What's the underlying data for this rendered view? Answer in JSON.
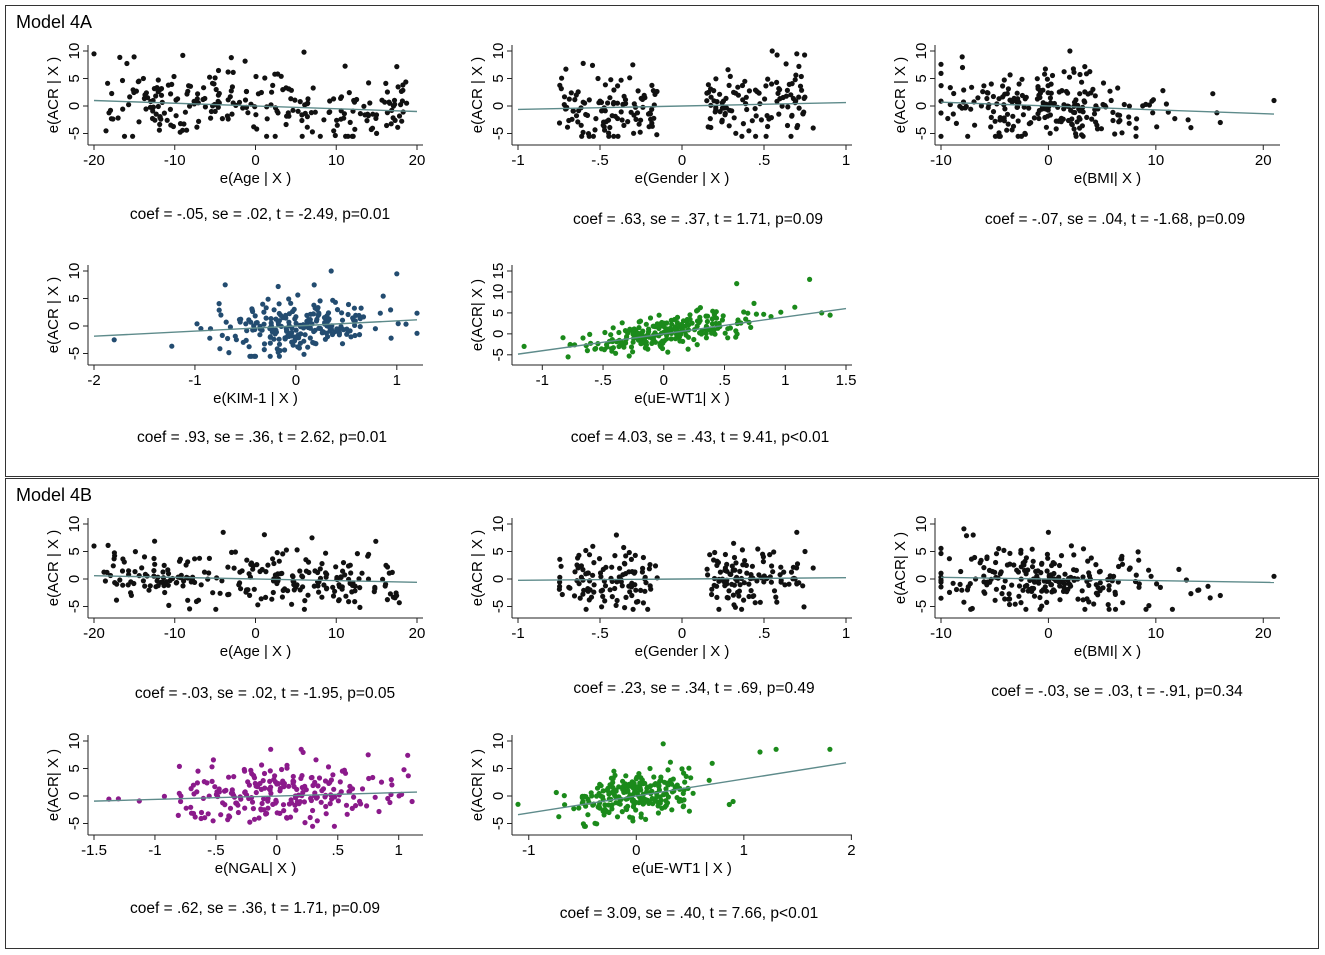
{
  "panels": [
    {
      "title": "Model 4A"
    },
    {
      "title": "Model 4B"
    }
  ],
  "colors": {
    "black": "#111111",
    "blue": "#234c70",
    "green": "#1b8a1b",
    "purple": "#8b1a8b",
    "fit_line": "#5e8b8b",
    "axis": "#222222"
  },
  "chart_data": [
    {
      "id": "a1",
      "type": "scatter",
      "panel": "Model 4A",
      "xlabel": "e(Age | X )",
      "ylabel": "e(ACR | X )",
      "xticks": [
        "-20",
        "-10",
        "0",
        "10",
        "20"
      ],
      "xtick_values": [
        -20,
        -10,
        0,
        10,
        20
      ],
      "yticks": [
        "-5",
        "0",
        "5",
        "10"
      ],
      "ytick_values": [
        -5,
        0,
        5,
        10
      ],
      "xlim": [
        -20,
        20
      ],
      "ylim": [
        -6,
        10
      ],
      "color": "black",
      "n_points": 240,
      "x_spread": 19,
      "y_spread": 3,
      "outliers": [
        [
          -20,
          9.5
        ],
        [
          -9,
          9.2
        ],
        [
          6,
          9.8
        ],
        [
          -3,
          8.8
        ],
        [
          14,
          4.2
        ]
      ],
      "fit": {
        "slope": -0.05,
        "intercept": 0
      },
      "annotation": "coef = -.05, se = .02, t = -2.49, p=0.01"
    },
    {
      "id": "a2",
      "type": "scatter",
      "panel": "Model 4A",
      "xlabel": "e(Gender | X )",
      "ylabel": "e(ACR | X )",
      "xticks": [
        "-1",
        "-.5",
        "0",
        ".5",
        "1"
      ],
      "xtick_values": [
        -1,
        -0.5,
        0,
        0.5,
        1
      ],
      "yticks": [
        "-5",
        "0",
        "5",
        "10"
      ],
      "ytick_values": [
        -5,
        0,
        5,
        10
      ],
      "xlim": [
        -1,
        1
      ],
      "ylim": [
        -6,
        10
      ],
      "color": "black",
      "n_points": 220,
      "groups": [
        -0.45,
        0.45
      ],
      "y_spread": 3,
      "outliers": [
        [
          0.55,
          10
        ],
        [
          0.7,
          9.5
        ],
        [
          -0.3,
          7.5
        ],
        [
          0.8,
          -4
        ]
      ],
      "fit": {
        "slope": 0.63,
        "intercept": 0
      },
      "annotation": "coef = .63, se = .37, t = 1.71, p=0.09"
    },
    {
      "id": "a3",
      "type": "scatter",
      "panel": "Model 4A",
      "xlabel": "e(BMI| X )",
      "ylabel": "e(ACR | X )",
      "xticks": [
        "-10",
        "0",
        "10",
        "20"
      ],
      "xtick_values": [
        -10,
        0,
        10,
        20
      ],
      "yticks": [
        "-5",
        "0",
        "5",
        "10"
      ],
      "ytick_values": [
        -5,
        0,
        5,
        10
      ],
      "xlim": [
        -10,
        21
      ],
      "ylim": [
        -6,
        10
      ],
      "color": "black",
      "n_points": 230,
      "x_spread": 5,
      "y_spread": 3,
      "outliers": [
        [
          -8,
          7
        ],
        [
          2,
          10
        ],
        [
          13,
          -2.5
        ],
        [
          16,
          -3
        ],
        [
          21,
          1
        ]
      ],
      "fit": {
        "slope": -0.07,
        "intercept": 0
      },
      "annotation": "coef = -.07, se = .04, t = -1.68, p=0.09"
    },
    {
      "id": "a4",
      "type": "scatter",
      "panel": "Model 4A",
      "xlabel": "e(KIM-1 | X )",
      "ylabel": "e(ACR | X )",
      "xticks": [
        "-2",
        "-1",
        "0",
        "1"
      ],
      "xtick_values": [
        -2,
        -1,
        0,
        1
      ],
      "yticks": [
        "-5",
        "0",
        "5",
        "10"
      ],
      "ytick_values": [
        -5,
        0,
        5,
        10
      ],
      "xlim": [
        -2,
        1.2
      ],
      "ylim": [
        -6,
        10
      ],
      "color": "blue",
      "n_points": 230,
      "x_spread": 0.45,
      "y_spread": 2.5,
      "outliers": [
        [
          -1.8,
          -2.5
        ],
        [
          0.35,
          10
        ],
        [
          1,
          9.5
        ],
        [
          -0.7,
          7.5
        ]
      ],
      "fit": {
        "slope": 0.93,
        "intercept": 0
      },
      "annotation": "coef = .93, se = .36, t = 2.62, p=0.01"
    },
    {
      "id": "a5",
      "type": "scatter",
      "panel": "Model 4A",
      "xlabel": "e(uE-WT1| X )",
      "ylabel": "e(ACR| X )",
      "xticks": [
        "-1",
        "-.5",
        "0",
        ".5",
        "1",
        "1.5"
      ],
      "xtick_values": [
        -1,
        -0.5,
        0,
        0.5,
        1,
        1.5
      ],
      "yticks": [
        "-5",
        "0",
        "5",
        "10",
        "15"
      ],
      "ytick_values": [
        -5,
        0,
        5,
        10,
        15
      ],
      "xlim": [
        -1.2,
        1.5
      ],
      "ylim": [
        -6,
        15
      ],
      "color": "green",
      "n_points": 230,
      "x_spread": 0.35,
      "y_spread": 2,
      "outliers": [
        [
          1.2,
          13
        ],
        [
          0.6,
          12
        ],
        [
          1.3,
          5
        ],
        [
          -1.15,
          -3
        ]
      ],
      "fit": {
        "slope": 4.03,
        "intercept": 0
      },
      "annotation": "coef = 4.03, se = .43, t = 9.41, p<0.01"
    },
    {
      "id": "b1",
      "type": "scatter",
      "panel": "Model 4B",
      "xlabel": "e(Age | X )",
      "ylabel": "e(ACR | X )",
      "xticks": [
        "-20",
        "-10",
        "0",
        "10",
        "20"
      ],
      "xtick_values": [
        -20,
        -10,
        0,
        10,
        20
      ],
      "yticks": [
        "-5",
        "0",
        "5",
        "10"
      ],
      "ytick_values": [
        -5,
        0,
        5,
        10
      ],
      "xlim": [
        -20,
        20
      ],
      "ylim": [
        -6,
        10
      ],
      "color": "black",
      "n_points": 240,
      "x_spread": 19,
      "y_spread": 2.5,
      "outliers": [
        [
          -20,
          6
        ],
        [
          -4,
          8.5
        ],
        [
          7,
          7.5
        ],
        [
          14,
          4.5
        ]
      ],
      "fit": {
        "slope": -0.03,
        "intercept": 0
      },
      "annotation": "coef = -.03, se = .02, t = -1.95, p=0.05"
    },
    {
      "id": "b2",
      "type": "scatter",
      "panel": "Model 4B",
      "xlabel": "e(Gender | X )",
      "ylabel": "e(ACR | X )",
      "xticks": [
        "-1",
        "-.5",
        "0",
        ".5",
        "1"
      ],
      "xtick_values": [
        -1,
        -0.5,
        0,
        0.5,
        1
      ],
      "yticks": [
        "-5",
        "0",
        "5",
        "10"
      ],
      "ytick_values": [
        -5,
        0,
        5,
        10
      ],
      "xlim": [
        -1,
        1
      ],
      "ylim": [
        -6,
        10
      ],
      "color": "black",
      "n_points": 220,
      "groups": [
        -0.45,
        0.45
      ],
      "y_spread": 2.8,
      "outliers": [
        [
          0.7,
          8.5
        ],
        [
          -0.4,
          8
        ],
        [
          0.75,
          5
        ],
        [
          0.8,
          2
        ]
      ],
      "fit": {
        "slope": 0.23,
        "intercept": 0
      },
      "annotation": "coef = .23, se = .34, t = .69, p=0.49"
    },
    {
      "id": "b3",
      "type": "scatter",
      "panel": "Model 4B",
      "xlabel": "e(BMI| X )",
      "ylabel": "e(ACR| X )",
      "xticks": [
        "-10",
        "0",
        "10",
        "20"
      ],
      "xtick_values": [
        -10,
        0,
        10,
        20
      ],
      "yticks": [
        "-5",
        "0",
        "5",
        "10"
      ],
      "ytick_values": [
        -5,
        0,
        5,
        10
      ],
      "xlim": [
        -10,
        21
      ],
      "ylim": [
        -6,
        10
      ],
      "color": "black",
      "n_points": 230,
      "x_spread": 5,
      "y_spread": 2.8,
      "outliers": [
        [
          0,
          8.5
        ],
        [
          -7,
          8
        ],
        [
          14,
          -2
        ],
        [
          16,
          -3
        ],
        [
          21,
          0.5
        ]
      ],
      "fit": {
        "slope": -0.03,
        "intercept": 0
      },
      "annotation": "coef = -.03, se = .03, t = -.91, p=0.34"
    },
    {
      "id": "b4",
      "type": "scatter",
      "panel": "Model 4B",
      "xlabel": "e(NGAL| X )",
      "ylabel": "e(ACR| X )",
      "xticks": [
        "-1.5",
        "-1",
        "-.5",
        "0",
        ".5",
        "1"
      ],
      "xtick_values": [
        -1.5,
        -1,
        -0.5,
        0,
        0.5,
        1
      ],
      "yticks": [
        "-5",
        "0",
        "5",
        "10"
      ],
      "ytick_values": [
        -5,
        0,
        5,
        10
      ],
      "xlim": [
        -1.5,
        1.15
      ],
      "ylim": [
        -6,
        10
      ],
      "color": "purple",
      "n_points": 230,
      "x_spread": 0.45,
      "y_spread": 2.8,
      "outliers": [
        [
          -0.05,
          8.5
        ],
        [
          0.2,
          8.5
        ],
        [
          0.75,
          7.5
        ],
        [
          -1.3,
          -0.5
        ]
      ],
      "fit": {
        "slope": 0.62,
        "intercept": 0
      },
      "annotation": "coef = .62, se = .36, t = 1.71, p=0.09"
    },
    {
      "id": "b5",
      "type": "scatter",
      "panel": "Model 4B",
      "xlabel": "e(uE-WT1 | X )",
      "ylabel": "e(ACR| X )",
      "xticks": [
        "-1",
        "0",
        "1",
        "2"
      ],
      "xtick_values": [
        -1,
        0,
        1,
        2
      ],
      "yticks": [
        "-5",
        "0",
        "5",
        "10"
      ],
      "ytick_values": [
        -5,
        0,
        5,
        10
      ],
      "xlim": [
        -1.1,
        1.95
      ],
      "ylim": [
        -6,
        10
      ],
      "color": "green",
      "n_points": 230,
      "x_spread": 0.3,
      "y_spread": 2,
      "outliers": [
        [
          1.8,
          8.5
        ],
        [
          1.3,
          8.5
        ],
        [
          1.15,
          8
        ],
        [
          0.25,
          9.5
        ],
        [
          0.9,
          -1
        ],
        [
          -1.1,
          -1.5
        ]
      ],
      "fit": {
        "slope": 3.09,
        "intercept": 0
      },
      "annotation": "coef = 3.09, se = .40, t = 7.66, p<0.01"
    }
  ]
}
